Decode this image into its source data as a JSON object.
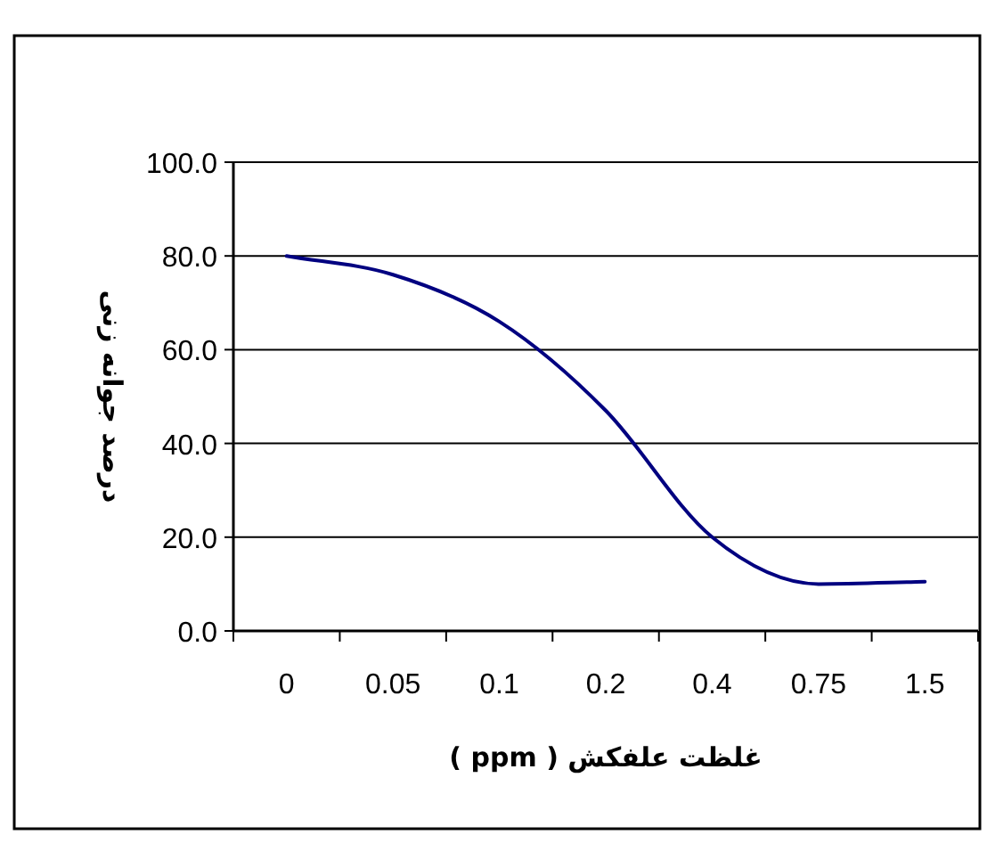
{
  "chart_data": {
    "type": "line",
    "xlabel": "غلظت علفکش ( ppm )",
    "ylabel": "درصد جوانه زنی",
    "categories": [
      "0",
      "0.05",
      "0.1",
      "0.2",
      "0.4",
      "0.75",
      "1.5"
    ],
    "series": [
      {
        "color": "#000080",
        "values": [
          80,
          76,
          66,
          47,
          20,
          10,
          10.5
        ]
      }
    ],
    "ylim": [
      0,
      100
    ],
    "yticks": [
      {
        "value": 0,
        "label": "0.0"
      },
      {
        "value": 20,
        "label": "20.0"
      },
      {
        "value": 40,
        "label": "40.0"
      },
      {
        "value": 60,
        "label": "60.0"
      },
      {
        "value": 80,
        "label": "80.0"
      },
      {
        "value": 100,
        "label": "100.0"
      }
    ],
    "grid": "y",
    "marker": "none",
    "line_style": "solid"
  }
}
